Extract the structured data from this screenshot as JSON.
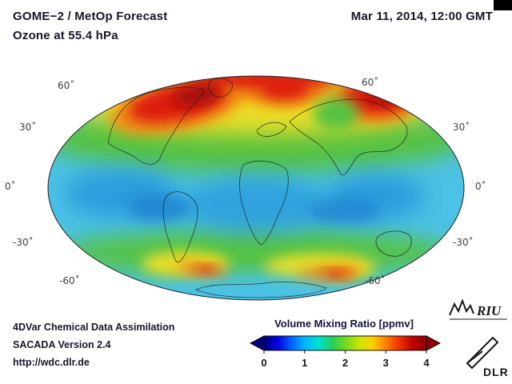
{
  "header": {
    "title_line1": "GOME−2 / MetOp Forecast",
    "title_line2": "Ozone at 55.4 hPa",
    "datetime": "Mar 11, 2014, 12:00 GMT"
  },
  "map": {
    "lat_labels_left": [
      "60˚",
      "30˚",
      "0˚",
      "-30˚",
      "-60˚"
    ],
    "lat_labels_right": [
      "60˚",
      "30˚",
      "0˚",
      "-30˚",
      "-60˚"
    ]
  },
  "footer": {
    "line1": "4DVar Chemical Data Assimilation",
    "line2": "SACADA Version 2.4",
    "line3": "http://wdc.dlr.de"
  },
  "colorbar": {
    "title": "Volume Mixing Ratio [ppmv]",
    "ticks": [
      "0",
      "1",
      "2",
      "3",
      "4"
    ],
    "colors": [
      "#000080",
      "#0000e0",
      "#0060ff",
      "#00b4ff",
      "#00e0d0",
      "#20d060",
      "#70d820",
      "#c8e400",
      "#ffd000",
      "#ff8000",
      "#f03000",
      "#c00000",
      "#900000"
    ]
  },
  "logos": {
    "riu": "RIU",
    "dlr": "DLR"
  }
}
